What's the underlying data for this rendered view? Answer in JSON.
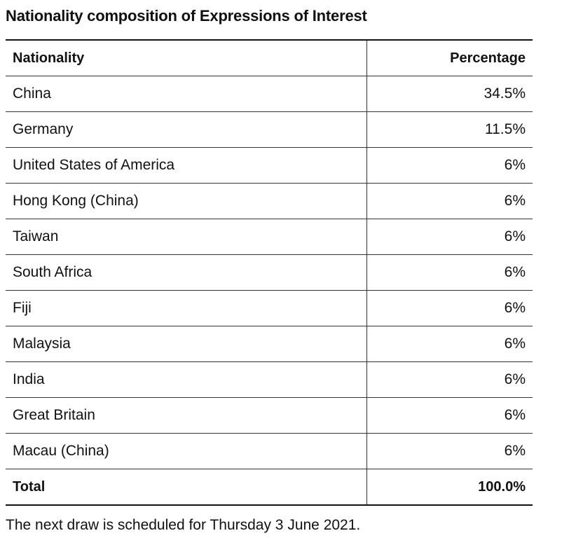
{
  "title": "Nationality composition of Expressions of Interest",
  "table": {
    "headers": {
      "nationality": "Nationality",
      "percentage": "Percentage"
    },
    "rows": [
      {
        "nationality": "China",
        "percentage": "34.5%"
      },
      {
        "nationality": "Germany",
        "percentage": "11.5%"
      },
      {
        "nationality": "United States of America",
        "percentage": "6%"
      },
      {
        "nationality": "Hong Kong (China)",
        "percentage": "6%"
      },
      {
        "nationality": "Taiwan",
        "percentage": "6%"
      },
      {
        "nationality": "South Africa",
        "percentage": "6%"
      },
      {
        "nationality": "Fiji",
        "percentage": "6%"
      },
      {
        "nationality": "Malaysia",
        "percentage": "6%"
      },
      {
        "nationality": "India",
        "percentage": "6%"
      },
      {
        "nationality": "Great Britain",
        "percentage": "6%"
      },
      {
        "nationality": "Macau (China)",
        "percentage": "6%"
      }
    ],
    "total": {
      "label": "Total",
      "percentage": "100.0%"
    }
  },
  "footnote": "The next draw is scheduled for Thursday 3 June 2021."
}
